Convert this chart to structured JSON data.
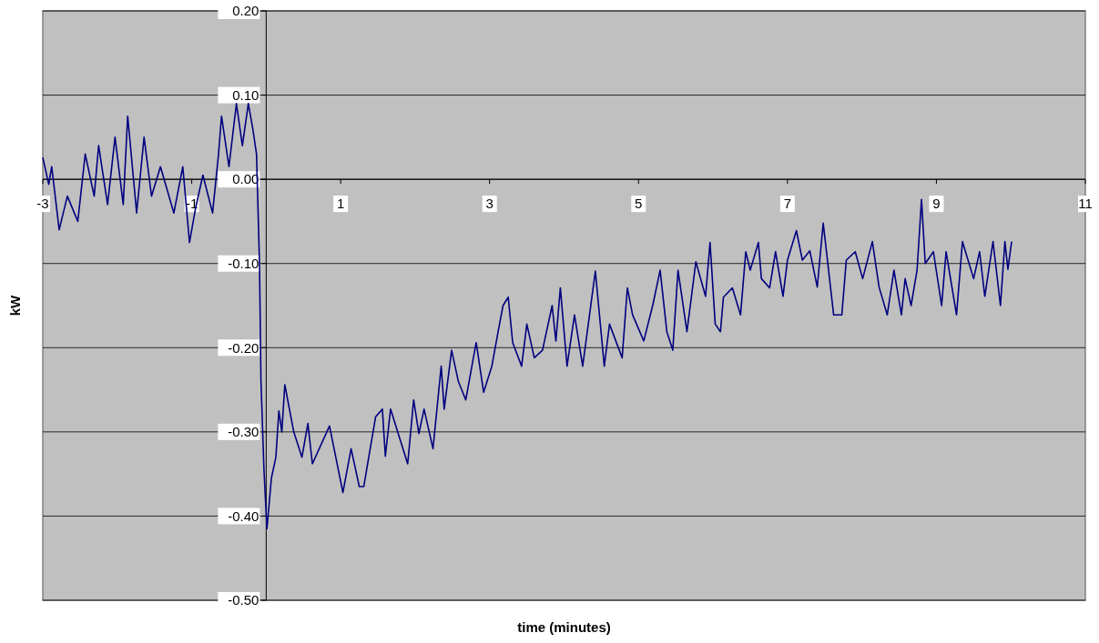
{
  "chart_data": {
    "type": "line",
    "xlabel": "time (minutes)",
    "ylabel": "kW",
    "xlim": [
      -3,
      11
    ],
    "xticks": [
      -3,
      -1,
      1,
      3,
      5,
      7,
      9,
      11
    ],
    "ylim": [
      -0.5,
      0.2
    ],
    "yticks": [
      {
        "value": -0.5,
        "label": "-0.50"
      },
      {
        "value": -0.4,
        "label": "-0.40"
      },
      {
        "value": -0.3,
        "label": "-0.30"
      },
      {
        "value": -0.2,
        "label": "-0.20"
      },
      {
        "value": -0.1,
        "label": "-0.10"
      },
      {
        "value": 0,
        "label": "0.00"
      },
      {
        "value": 0.1,
        "label": "0.10"
      },
      {
        "value": 0.2,
        "label": "0.20"
      }
    ],
    "grid": "y",
    "marker": "none",
    "line_style": "solid",
    "series": [
      {
        "color": "#000080",
        "x": [
          -3,
          -2.92,
          -2.88,
          -2.78,
          -2.67,
          -2.53,
          -2.43,
          -2.31,
          -2.25,
          -2.13,
          -2.03,
          -1.92,
          -1.86,
          -1.74,
          -1.64,
          -1.54,
          -1.42,
          -1.24,
          -1.12,
          -1.03,
          -0.95,
          -0.85,
          -0.72,
          -0.64,
          -0.6,
          -0.5,
          -0.4,
          -0.32,
          -0.24,
          -0.18,
          -0.13,
          -0.09,
          -0.07,
          -0.03,
          0.01,
          0.07,
          0.13,
          0.17,
          0.21,
          0.25,
          0.37,
          0.48,
          0.56,
          0.62,
          0.85,
          1.03,
          1.14,
          1.25,
          1.31,
          1.47,
          1.56,
          1.6,
          1.67,
          1.9,
          1.98,
          2.05,
          2.12,
          2.24,
          2.35,
          2.39,
          2.49,
          2.58,
          2.68,
          2.82,
          2.92,
          3.03,
          3.11,
          3.18,
          3.25,
          3.31,
          3.43,
          3.5,
          3.6,
          3.71,
          3.84,
          3.89,
          3.95,
          4.04,
          4.14,
          4.25,
          4.42,
          4.54,
          4.61,
          4.78,
          4.85,
          4.92,
          5.07,
          5.19,
          5.29,
          5.38,
          5.46,
          5.53,
          5.65,
          5.77,
          5.9,
          5.96,
          6.03,
          6.1,
          6.14,
          6.26,
          6.37,
          6.44,
          6.5,
          6.61,
          6.65,
          6.76,
          6.84,
          6.94,
          7,
          7.12,
          7.2,
          7.3,
          7.4,
          7.48,
          7.62,
          7.73,
          7.79,
          7.91,
          8.01,
          8.14,
          8.23,
          8.34,
          8.43,
          8.53,
          8.58,
          8.66,
          8.74,
          8.8,
          8.85,
          8.96,
          9.07,
          9.13,
          9.27,
          9.35,
          9.5,
          9.58,
          9.65,
          9.76,
          9.86,
          9.92,
          9.96,
          10.01
        ],
        "values": [
          0.026,
          -0.006,
          0.015,
          -0.06,
          -0.02,
          -0.05,
          0.03,
          -0.02,
          0.04,
          -0.03,
          0.05,
          -0.03,
          0.075,
          -0.04,
          0.05,
          -0.02,
          0.015,
          -0.04,
          0.015,
          -0.075,
          -0.035,
          0.005,
          -0.04,
          0.03,
          0.075,
          0.015,
          0.09,
          0.04,
          0.09,
          0.06,
          0.03,
          -0.1,
          -0.24,
          -0.345,
          -0.415,
          -0.355,
          -0.33,
          -0.275,
          -0.3,
          -0.244,
          -0.3,
          -0.33,
          -0.29,
          -0.338,
          -0.293,
          -0.372,
          -0.32,
          -0.365,
          -0.365,
          -0.282,
          -0.273,
          -0.329,
          -0.273,
          -0.338,
          -0.262,
          -0.302,
          -0.273,
          -0.32,
          -0.222,
          -0.273,
          -0.203,
          -0.24,
          -0.262,
          -0.194,
          -0.253,
          -0.222,
          -0.183,
          -0.15,
          -0.14,
          -0.194,
          -0.222,
          -0.172,
          -0.212,
          -0.203,
          -0.15,
          -0.192,
          -0.129,
          -0.222,
          -0.161,
          -0.222,
          -0.109,
          -0.222,
          -0.172,
          -0.212,
          -0.129,
          -0.161,
          -0.192,
          -0.15,
          -0.108,
          -0.181,
          -0.203,
          -0.108,
          -0.181,
          -0.098,
          -0.139,
          -0.075,
          -0.172,
          -0.181,
          -0.14,
          -0.129,
          -0.161,
          -0.086,
          -0.108,
          -0.075,
          -0.118,
          -0.129,
          -0.086,
          -0.139,
          -0.096,
          -0.061,
          -0.096,
          -0.085,
          -0.128,
          -0.052,
          -0.161,
          -0.161,
          -0.096,
          -0.086,
          -0.118,
          -0.074,
          -0.128,
          -0.161,
          -0.108,
          -0.161,
          -0.118,
          -0.15,
          -0.108,
          -0.024,
          -0.1,
          -0.086,
          -0.15,
          -0.086,
          -0.161,
          -0.074,
          -0.118,
          -0.086,
          -0.139,
          -0.074,
          -0.15,
          -0.074,
          -0.107,
          -0.074
        ]
      }
    ]
  }
}
